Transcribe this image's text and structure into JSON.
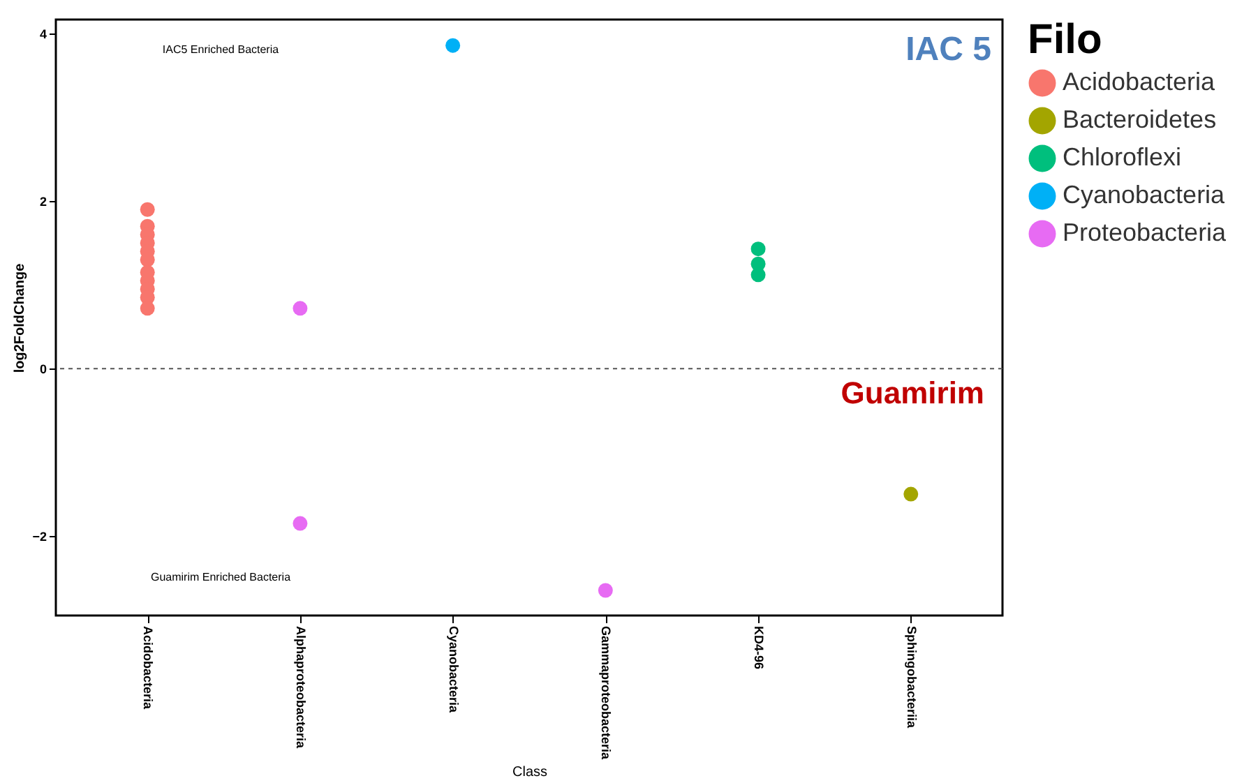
{
  "chart_data": {
    "type": "scatter",
    "xlabel": "Class",
    "ylabel": "log2FoldChange",
    "legend_title": "Filo",
    "categories": [
      "Acidobacteria",
      "Alphaproteobacteria",
      "Cyanobacteria",
      "Gammaproteobacteria",
      "KD4-96",
      "Sphingobacteriia"
    ],
    "series": [
      {
        "name": "Acidobacteria",
        "color": "#f8766d",
        "x": [
          "Acidobacteria",
          "Acidobacteria",
          "Acidobacteria",
          "Acidobacteria",
          "Acidobacteria",
          "Acidobacteria",
          "Acidobacteria",
          "Acidobacteria",
          "Acidobacteria",
          "Acidobacteria",
          "Acidobacteria"
        ],
        "values": [
          1.9,
          1.7,
          1.6,
          1.5,
          1.4,
          1.3,
          1.15,
          1.05,
          0.95,
          0.85,
          0.72
        ]
      },
      {
        "name": "Bacteroidetes",
        "color": "#a3a500",
        "x": [
          "Sphingobacteriia"
        ],
        "values": [
          -1.5
        ]
      },
      {
        "name": "Chloroflexi",
        "color": "#00bf7d",
        "x": [
          "KD4-96",
          "KD4-96",
          "KD4-96"
        ],
        "values": [
          1.43,
          1.25,
          1.12
        ]
      },
      {
        "name": "Cyanobacteria",
        "color": "#00b0f6",
        "x": [
          "Cyanobacteria"
        ],
        "values": [
          3.86
        ]
      },
      {
        "name": "Proteobacteria",
        "color": "#e76bf3",
        "x": [
          "Alphaproteobacteria",
          "Alphaproteobacteria",
          "Gammaproteobacteria"
        ],
        "values": [
          0.72,
          -1.85,
          -2.65
        ]
      }
    ],
    "ylim": [
      -2.95,
      4.17
    ],
    "yticks": [
      -2,
      0,
      2,
      4
    ],
    "grid": false,
    "legend": "right",
    "marker": "circle",
    "ref_lines": [
      {
        "axis": "y",
        "value": 0,
        "line_style": "dashed",
        "color": "#555555"
      }
    ],
    "annotations": [
      "IAC5 Enriched Bacteria",
      "IAC 5",
      "Guamirim",
      "Guamirim Enriched Bacteria"
    ]
  }
}
